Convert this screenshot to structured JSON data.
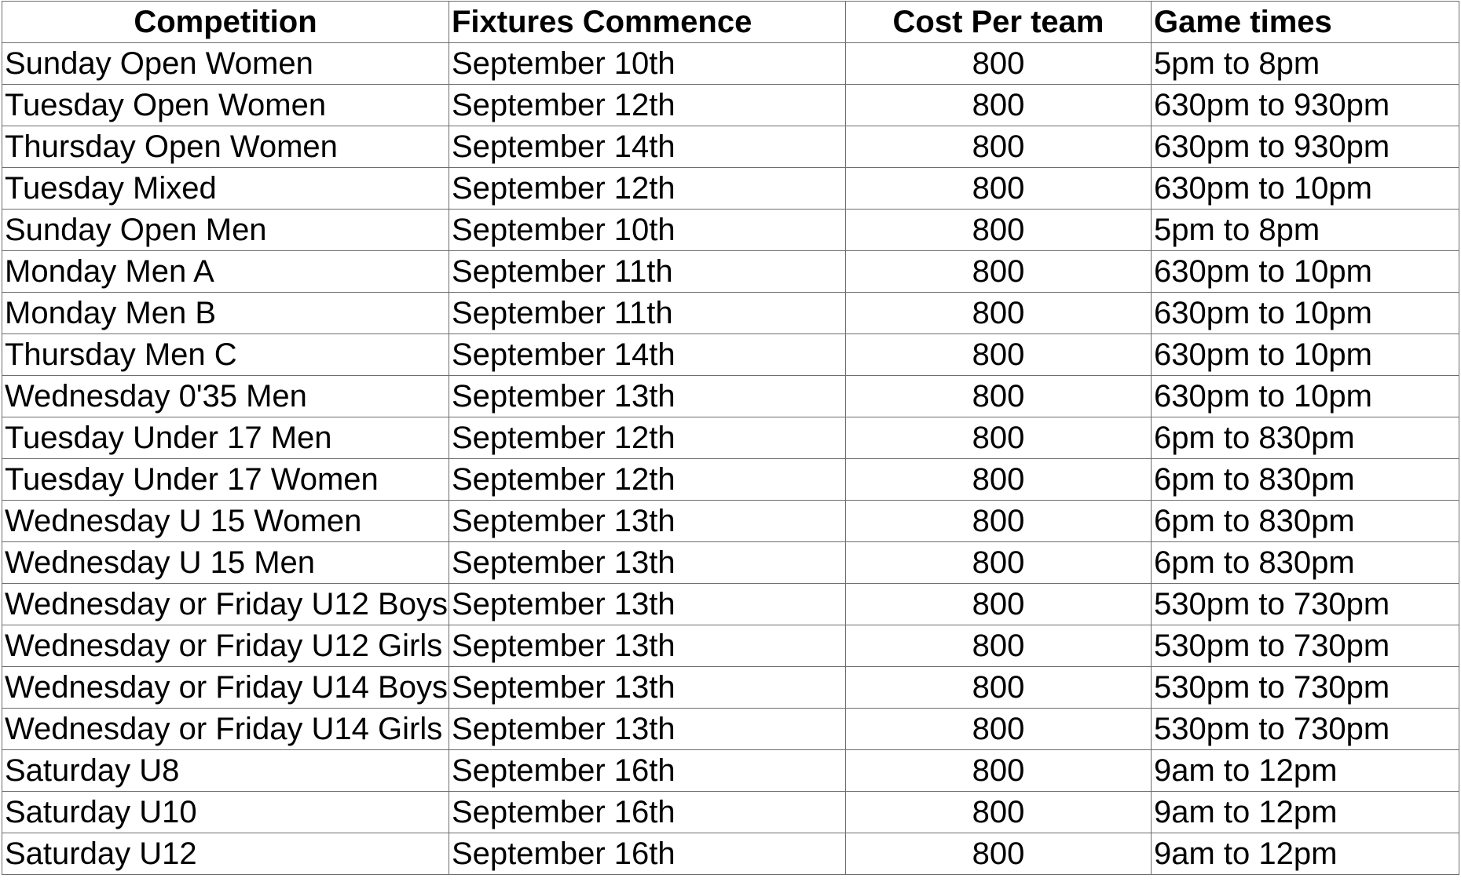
{
  "table": {
    "headers": {
      "competition": "Competition",
      "fixtures": "Fixtures Commence",
      "cost": "Cost Per team",
      "times": "Game times"
    },
    "rows": [
      {
        "competition": "Sunday Open Women",
        "fixtures": "September 10th",
        "cost": "800",
        "times": "5pm to 8pm"
      },
      {
        "competition": "Tuesday Open Women",
        "fixtures": "September 12th",
        "cost": "800",
        "times": "630pm to 930pm"
      },
      {
        "competition": "Thursday Open Women",
        "fixtures": "September 14th",
        "cost": "800",
        "times": "630pm to 930pm"
      },
      {
        "competition": "Tuesday Mixed",
        "fixtures": "September 12th",
        "cost": "800",
        "times": "630pm to 10pm"
      },
      {
        "competition": "Sunday Open Men",
        "fixtures": "September 10th",
        "cost": "800",
        "times": "5pm to 8pm"
      },
      {
        "competition": "Monday Men A",
        "fixtures": "September 11th",
        "cost": "800",
        "times": "630pm to 10pm"
      },
      {
        "competition": "Monday Men B",
        "fixtures": "September 11th",
        "cost": "800",
        "times": "630pm to 10pm"
      },
      {
        "competition": "Thursday Men C",
        "fixtures": "September 14th",
        "cost": "800",
        "times": "630pm to 10pm"
      },
      {
        "competition": "Wednesday 0'35 Men",
        "fixtures": "September 13th",
        "cost": "800",
        "times": "630pm to 10pm"
      },
      {
        "competition": "Tuesday Under 17 Men",
        "fixtures": "September 12th",
        "cost": "800",
        "times": "6pm to 830pm"
      },
      {
        "competition": "Tuesday Under 17 Women",
        "fixtures": "September 12th",
        "cost": "800",
        "times": "6pm to 830pm"
      },
      {
        "competition": "Wednesday U 15 Women",
        "fixtures": "September 13th",
        "cost": "800",
        "times": "6pm to 830pm"
      },
      {
        "competition": "Wednesday U 15 Men",
        "fixtures": "September 13th",
        "cost": "800",
        "times": "6pm to 830pm"
      },
      {
        "competition": "Wednesday or Friday U12 Boys",
        "fixtures": "September 13th",
        "cost": "800",
        "times": "530pm to 730pm"
      },
      {
        "competition": "Wednesday or Friday U12 Girls",
        "fixtures": "September 13th",
        "cost": "800",
        "times": "530pm to 730pm"
      },
      {
        "competition": "Wednesday or Friday U14 Boys",
        "fixtures": "September 13th",
        "cost": "800",
        "times": "530pm to 730pm"
      },
      {
        "competition": "Wednesday or Friday U14 Girls",
        "fixtures": "September 13th",
        "cost": "800",
        "times": "530pm to 730pm"
      },
      {
        "competition": "Saturday U8",
        "fixtures": "September 16th",
        "cost": "800",
        "times": "9am to 12pm"
      },
      {
        "competition": "Saturday U10",
        "fixtures": "September 16th",
        "cost": "800",
        "times": "9am to 12pm"
      },
      {
        "competition": "Saturday U12",
        "fixtures": "September 16th",
        "cost": "800",
        "times": "9am to 12pm"
      }
    ]
  }
}
